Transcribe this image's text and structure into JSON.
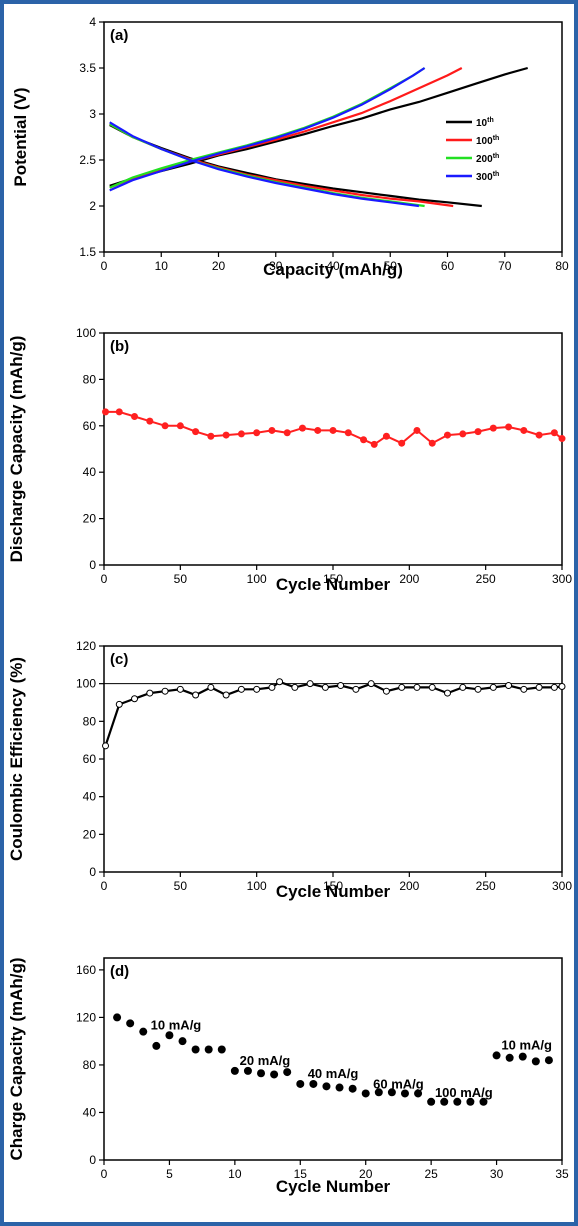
{
  "colors": {
    "frame": "#2b63a8",
    "s10": "#000000",
    "s100": "#ff1a1a",
    "s200": "#22e022",
    "s300": "#1a1aff",
    "red_marker": "#ff2020"
  },
  "chart_data": [
    {
      "id": "a",
      "type": "line",
      "panel_label": "(a)",
      "xlabel": "Capacity (mAh/g)",
      "ylabel": "Potential (V)",
      "xlim": [
        0,
        80
      ],
      "ylim": [
        1.5,
        4
      ],
      "xticks": [
        0,
        10,
        20,
        30,
        40,
        50,
        60,
        70,
        80
      ],
      "yticks": [
        1.5,
        2,
        2.5,
        3,
        3.5,
        4
      ],
      "legend_position": "right",
      "series": [
        {
          "name": "10th",
          "num": "10",
          "sup": "th",
          "color": "#000000",
          "charge": [
            [
              1,
              2.22
            ],
            [
              5,
              2.3
            ],
            [
              10,
              2.38
            ],
            [
              15,
              2.46
            ],
            [
              20,
              2.55
            ],
            [
              25,
              2.62
            ],
            [
              30,
              2.7
            ],
            [
              35,
              2.78
            ],
            [
              40,
              2.87
            ],
            [
              45,
              2.95
            ],
            [
              50,
              3.05
            ],
            [
              55,
              3.13
            ],
            [
              60,
              3.23
            ],
            [
              65,
              3.33
            ],
            [
              70,
              3.43
            ],
            [
              74,
              3.5
            ]
          ],
          "discharge": [
            [
              1,
              2.88
            ],
            [
              5,
              2.75
            ],
            [
              10,
              2.63
            ],
            [
              15,
              2.52
            ],
            [
              20,
              2.43
            ],
            [
              25,
              2.36
            ],
            [
              30,
              2.29
            ],
            [
              35,
              2.24
            ],
            [
              40,
              2.19
            ],
            [
              45,
              2.15
            ],
            [
              50,
              2.11
            ],
            [
              55,
              2.07
            ],
            [
              60,
              2.04
            ],
            [
              66,
              2.0
            ]
          ]
        },
        {
          "name": "100th",
          "num": "100",
          "sup": "th",
          "color": "#ff1a1a",
          "charge": [
            [
              1,
              2.2
            ],
            [
              5,
              2.3
            ],
            [
              10,
              2.39
            ],
            [
              15,
              2.48
            ],
            [
              20,
              2.56
            ],
            [
              25,
              2.64
            ],
            [
              30,
              2.72
            ],
            [
              35,
              2.81
            ],
            [
              40,
              2.91
            ],
            [
              45,
              3.01
            ],
            [
              50,
              3.14
            ],
            [
              55,
              3.28
            ],
            [
              60,
              3.42
            ],
            [
              62.5,
              3.5
            ]
          ],
          "discharge": [
            [
              1,
              2.89
            ],
            [
              5,
              2.75
            ],
            [
              10,
              2.62
            ],
            [
              15,
              2.51
            ],
            [
              20,
              2.42
            ],
            [
              25,
              2.34
            ],
            [
              30,
              2.28
            ],
            [
              35,
              2.22
            ],
            [
              40,
              2.17
            ],
            [
              45,
              2.12
            ],
            [
              50,
              2.08
            ],
            [
              55,
              2.05
            ],
            [
              61,
              2.0
            ]
          ]
        },
        {
          "name": "200th",
          "num": "200",
          "sup": "th",
          "color": "#22e022",
          "charge": [
            [
              1,
              2.2
            ],
            [
              5,
              2.31
            ],
            [
              10,
              2.41
            ],
            [
              15,
              2.5
            ],
            [
              20,
              2.58
            ],
            [
              25,
              2.66
            ],
            [
              30,
              2.75
            ],
            [
              35,
              2.85
            ],
            [
              40,
              2.97
            ],
            [
              45,
              3.11
            ],
            [
              50,
              3.28
            ],
            [
              54,
              3.42
            ],
            [
              56,
              3.5
            ]
          ],
          "discharge": [
            [
              1,
              2.89
            ],
            [
              5,
              2.75
            ],
            [
              10,
              2.62
            ],
            [
              15,
              2.5
            ],
            [
              20,
              2.41
            ],
            [
              25,
              2.33
            ],
            [
              30,
              2.26
            ],
            [
              35,
              2.2
            ],
            [
              40,
              2.14
            ],
            [
              45,
              2.09
            ],
            [
              50,
              2.05
            ],
            [
              56,
              2.0
            ]
          ]
        },
        {
          "name": "300th",
          "num": "300",
          "sup": "th",
          "color": "#1a1aff",
          "charge": [
            [
              1,
              2.17
            ],
            [
              5,
              2.28
            ],
            [
              10,
              2.38
            ],
            [
              15,
              2.48
            ],
            [
              20,
              2.57
            ],
            [
              25,
              2.65
            ],
            [
              30,
              2.74
            ],
            [
              35,
              2.84
            ],
            [
              40,
              2.96
            ],
            [
              45,
              3.1
            ],
            [
              50,
              3.27
            ],
            [
              54,
              3.42
            ],
            [
              56,
              3.5
            ]
          ],
          "discharge": [
            [
              1,
              2.91
            ],
            [
              5,
              2.76
            ],
            [
              10,
              2.62
            ],
            [
              15,
              2.5
            ],
            [
              20,
              2.4
            ],
            [
              25,
              2.32
            ],
            [
              30,
              2.25
            ],
            [
              35,
              2.19
            ],
            [
              40,
              2.13
            ],
            [
              45,
              2.08
            ],
            [
              50,
              2.04
            ],
            [
              55,
              2.0
            ]
          ]
        }
      ]
    },
    {
      "id": "b",
      "type": "line",
      "panel_label": "(b)",
      "xlabel": "Cycle Number",
      "ylabel": "Discharge Capacity (mAh/g)",
      "xlim": [
        0,
        300
      ],
      "ylim": [
        0,
        100
      ],
      "xticks": [
        0,
        50,
        100,
        150,
        200,
        250,
        300
      ],
      "yticks": [
        0,
        20,
        40,
        60,
        80,
        100
      ],
      "x": [
        1,
        10,
        20,
        30,
        40,
        50,
        60,
        70,
        80,
        90,
        100,
        110,
        120,
        130,
        140,
        150,
        160,
        170,
        177,
        185,
        195,
        205,
        215,
        225,
        235,
        245,
        255,
        265,
        275,
        285,
        295,
        300
      ],
      "y": [
        66,
        66,
        64,
        62,
        60,
        60,
        57.5,
        55.5,
        56,
        56.5,
        57,
        58,
        57,
        59,
        58,
        58,
        57,
        54,
        52,
        55.5,
        52.5,
        58,
        52.5,
        56,
        56.5,
        57.5,
        59,
        59.5,
        58,
        56,
        57,
        54.5
      ]
    },
    {
      "id": "c",
      "type": "line",
      "panel_label": "(c)",
      "xlabel": "Cycle Number",
      "ylabel": "Coulombic Efficiency (%)",
      "xlim": [
        0,
        300
      ],
      "ylim": [
        0,
        120
      ],
      "xticks": [
        0,
        50,
        100,
        150,
        200,
        250,
        300
      ],
      "yticks": [
        0,
        20,
        40,
        60,
        80,
        100,
        120
      ],
      "reference_line": 100,
      "x": [
        1,
        10,
        20,
        30,
        40,
        50,
        60,
        70,
        80,
        90,
        100,
        110,
        115,
        125,
        135,
        145,
        155,
        165,
        175,
        185,
        195,
        205,
        215,
        225,
        235,
        245,
        255,
        265,
        275,
        285,
        295,
        300
      ],
      "y": [
        67,
        89,
        92,
        95,
        96,
        97,
        94,
        98,
        94,
        97,
        97,
        98,
        101,
        98,
        100,
        98,
        99,
        97,
        100,
        96,
        98,
        98,
        98,
        95,
        98,
        97,
        98,
        99,
        97,
        98,
        98,
        98.5
      ]
    },
    {
      "id": "d",
      "type": "scatter",
      "panel_label": "(d)",
      "xlabel": "Cycle Number",
      "ylabel": "Charge Capacity (mAh/g)",
      "xlim": [
        0,
        35
      ],
      "ylim": [
        0,
        170
      ],
      "xticks": [
        0,
        5,
        10,
        15,
        20,
        25,
        30,
        35
      ],
      "yticks": [
        0,
        40,
        80,
        120,
        160
      ],
      "x": [
        1,
        2,
        3,
        4,
        5,
        6,
        7,
        8,
        9,
        10,
        11,
        12,
        13,
        14,
        15,
        16,
        17,
        18,
        19,
        20,
        21,
        22,
        23,
        24,
        25,
        26,
        27,
        28,
        29,
        30,
        31,
        32,
        33,
        34
      ],
      "y": [
        120,
        115,
        108,
        96,
        105,
        100,
        93,
        93,
        93,
        75,
        75,
        73,
        72,
        74,
        64,
        64,
        62,
        61,
        60,
        56,
        57,
        57,
        56,
        56,
        49,
        49,
        49,
        49,
        49,
        88,
        86,
        87,
        83,
        84
      ],
      "annotations": [
        {
          "text": "10 mA/g",
          "x": 5.5,
          "y": 110
        },
        {
          "text": "20 mA/g",
          "x": 12.3,
          "y": 80
        },
        {
          "text": "40 mA/g",
          "x": 17.5,
          "y": 69
        },
        {
          "text": "60 mA/g",
          "x": 22.5,
          "y": 60
        },
        {
          "text": "100 mA/g",
          "x": 27.5,
          "y": 53
        },
        {
          "text": "10 mA/g",
          "x": 32.3,
          "y": 93
        }
      ]
    }
  ]
}
